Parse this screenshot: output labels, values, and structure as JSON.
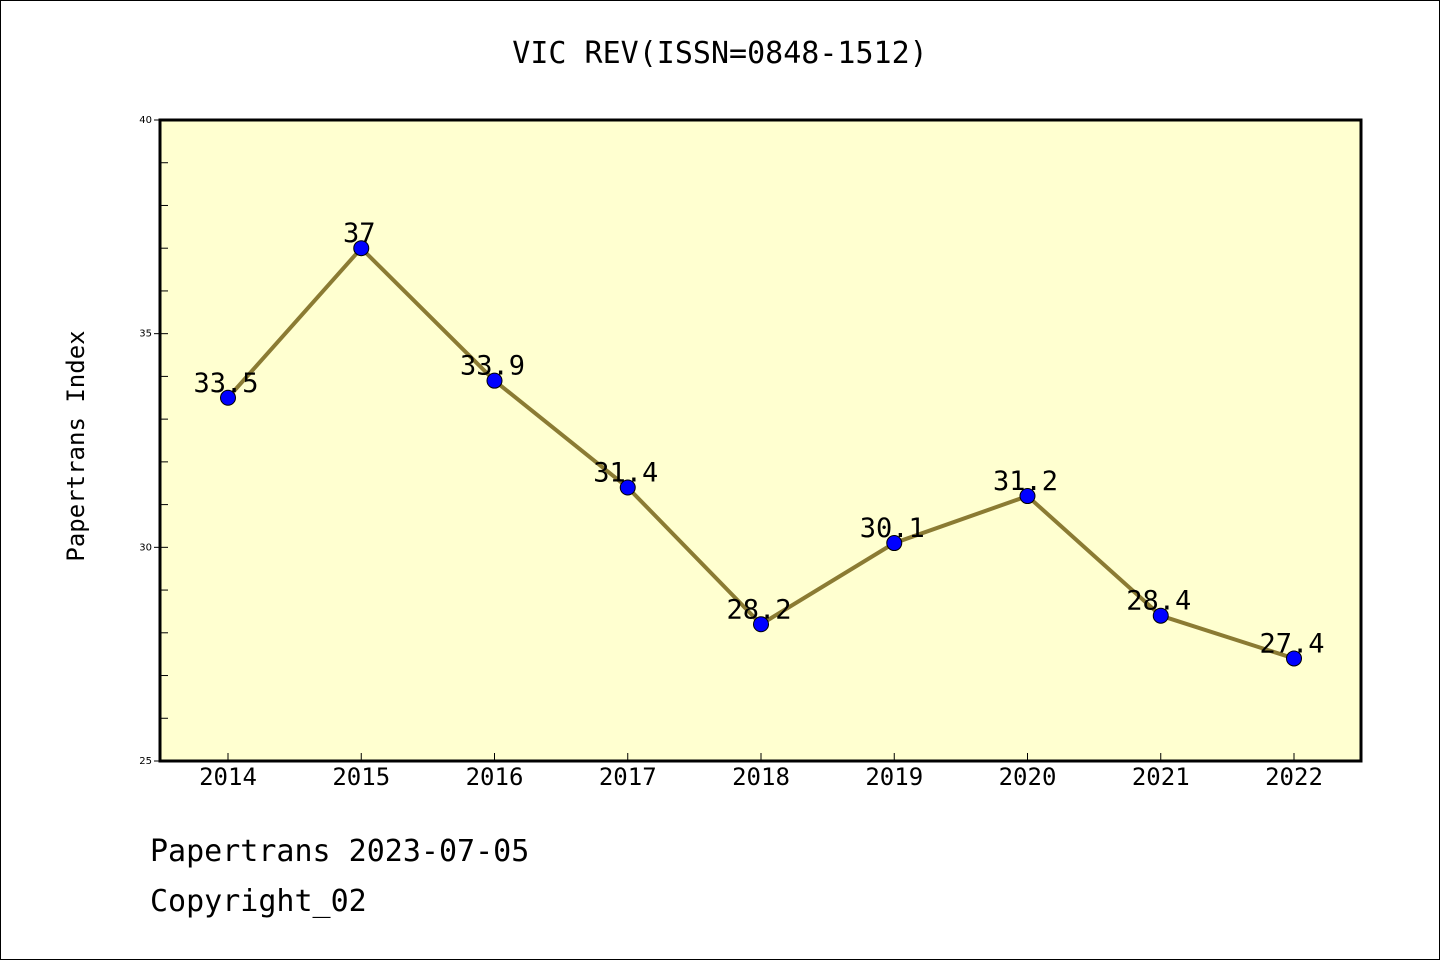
{
  "chart_data": {
    "type": "line",
    "title": "VIC REV(ISSN=0848-1512)",
    "xlabel": "",
    "ylabel": "Papertrans Index",
    "categories": [
      "2014",
      "2015",
      "2016",
      "2017",
      "2018",
      "2019",
      "2020",
      "2021",
      "2022"
    ],
    "series": [
      {
        "values": [
          33.5,
          37,
          33.9,
          31.4,
          28.2,
          30.1,
          31.2,
          28.4,
          27.4
        ],
        "labels": [
          "33.5",
          "37",
          "33.9",
          "31.4",
          "28.2",
          "30.1",
          "31.2",
          "28.4",
          "27.4"
        ]
      }
    ],
    "ylim": [
      25,
      40
    ],
    "yticks": [
      "25",
      "30",
      "35",
      "40"
    ],
    "grid": false,
    "colors": {
      "line": "#8B7B33",
      "marker": "#0000FF",
      "plot_bg": "#FFFFD0"
    }
  },
  "footer": {
    "line1": "Papertrans 2023-07-05",
    "line2": "Copyright_02"
  }
}
